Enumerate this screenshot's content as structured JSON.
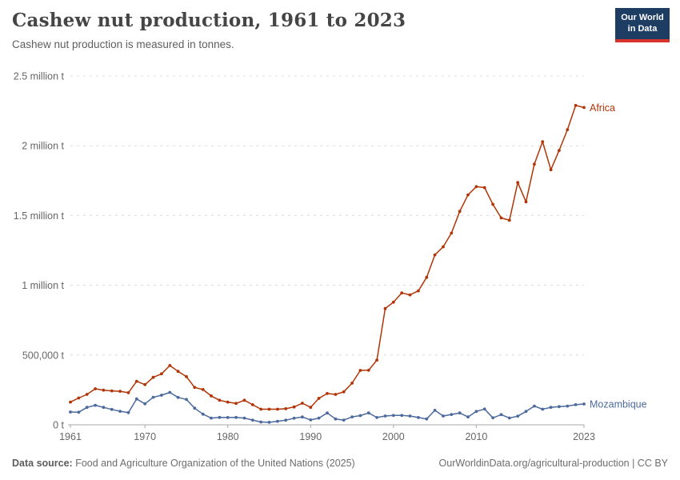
{
  "header": {
    "title": "Cashew nut production, 1961 to 2023",
    "subtitle": "Cashew nut production is measured in tonnes.",
    "logo": {
      "line1": "Our World",
      "line2": "in Data"
    }
  },
  "footer": {
    "source_label": "Data source:",
    "source_text": " Food and Agriculture Organization of the United Nations (2025)",
    "link_text": "OurWorldinData.org/agricultural-production | CC BY"
  },
  "colors": {
    "africa_line": "#b13507",
    "mozambique_line": "#4c6a9d",
    "grid": "#dcdcdc",
    "axis": "#a8a8a8",
    "tick_text": "#666666",
    "logo_bg": "#1d3d63",
    "logo_bar": "#d8342c"
  },
  "chart_data": {
    "type": "line",
    "title": "Cashew nut production, 1961 to 2023",
    "subtitle": "Cashew nut production is measured in tonnes.",
    "xlabel": "",
    "ylabel": "tonnes",
    "xlim": [
      1961,
      2023
    ],
    "ylim": [
      0,
      2500000
    ],
    "grid": "horizontal-dashed",
    "legend_position": "line-end-labels",
    "years": [
      1961,
      1962,
      1963,
      1964,
      1965,
      1966,
      1967,
      1968,
      1969,
      1970,
      1971,
      1972,
      1973,
      1974,
      1975,
      1976,
      1977,
      1978,
      1979,
      1980,
      1981,
      1982,
      1983,
      1984,
      1985,
      1986,
      1987,
      1988,
      1989,
      1990,
      1991,
      1992,
      1993,
      1994,
      1995,
      1996,
      1997,
      1998,
      1999,
      2000,
      2001,
      2002,
      2003,
      2004,
      2005,
      2006,
      2007,
      2008,
      2009,
      2010,
      2011,
      2012,
      2013,
      2014,
      2015,
      2016,
      2017,
      2018,
      2019,
      2020,
      2021,
      2022,
      2023
    ],
    "xticks": [
      1961,
      1970,
      1980,
      1990,
      2000,
      2010,
      2023
    ],
    "yticks": [
      {
        "value": 0,
        "label": "0 t"
      },
      {
        "value": 500000,
        "label": "500,000 t"
      },
      {
        "value": 1000000,
        "label": "1 million t"
      },
      {
        "value": 1500000,
        "label": "1.5 million t"
      },
      {
        "value": 2000000,
        "label": "2 million t"
      },
      {
        "value": 2500000,
        "label": "2.5 million t"
      }
    ],
    "series": [
      {
        "name": "Africa",
        "color": "#b13507",
        "values": [
          163000,
          192000,
          218000,
          258000,
          248000,
          243000,
          240000,
          230000,
          312000,
          288000,
          340000,
          365000,
          425000,
          383000,
          345000,
          268000,
          253000,
          207000,
          176000,
          163000,
          153000,
          176000,
          144000,
          112000,
          112000,
          112000,
          115000,
          128000,
          155000,
          125000,
          190000,
          224000,
          218000,
          236000,
          299000,
          390000,
          391000,
          464000,
          833000,
          879000,
          945000,
          931000,
          960000,
          1057000,
          1218000,
          1276000,
          1374000,
          1530000,
          1648000,
          1707000,
          1700000,
          1580000,
          1483000,
          1466000,
          1736000,
          1598000,
          1868000,
          2029000,
          1828000,
          1966000,
          2115000,
          2289000,
          2274000
        ]
      },
      {
        "name": "Mozambique",
        "color": "#4c6a9d",
        "values": [
          92000,
          90000,
          125000,
          140000,
          125000,
          110000,
          97000,
          87000,
          185000,
          150000,
          197000,
          212000,
          232000,
          196000,
          182000,
          119000,
          76000,
          48000,
          53000,
          52000,
          53000,
          48000,
          34000,
          20000,
          18000,
          25000,
          33000,
          47000,
          56000,
          35000,
          48000,
          85000,
          42000,
          34000,
          57000,
          66000,
          85000,
          52000,
          63000,
          67000,
          67000,
          63000,
          52000,
          42000,
          104000,
          63000,
          74000,
          85000,
          56000,
          96000,
          113000,
          50000,
          73000,
          49000,
          62000,
          96000,
          134000,
          112000,
          125000,
          130000,
          134000,
          144000,
          149000
        ]
      }
    ]
  }
}
